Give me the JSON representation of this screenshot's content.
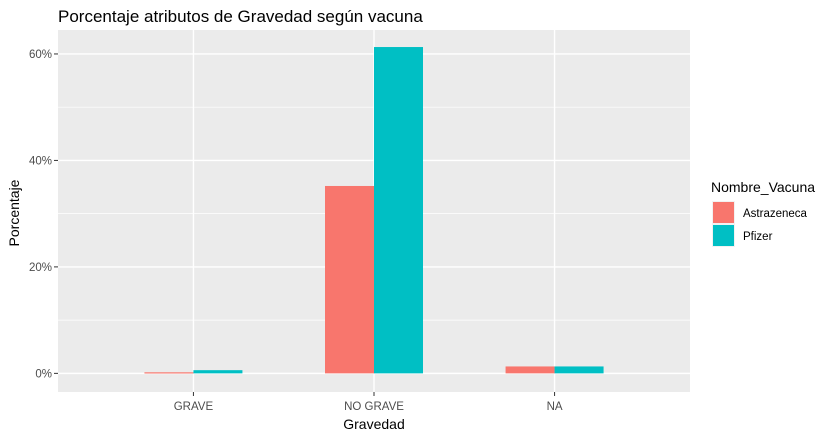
{
  "chart_data": {
    "type": "bar",
    "title": "Porcentaje atributos de Gravedad según vacuna",
    "xlabel": "Gravedad",
    "ylabel": "Porcentaje",
    "categories": [
      "GRAVE",
      "NO GRAVE",
      "NA"
    ],
    "series": [
      {
        "name": "Astrazeneca",
        "color": "#F8766D",
        "values": [
          0.2,
          35.2,
          1.3
        ]
      },
      {
        "name": "Pfizer",
        "color": "#00BFC4",
        "values": [
          0.6,
          61.3,
          1.3
        ]
      }
    ],
    "ylim": [
      -3.5,
      64.5
    ],
    "yticks": [
      0,
      20,
      40,
      60
    ],
    "ytick_labels": [
      "0%",
      "20%",
      "40%",
      "60%"
    ],
    "grid": true,
    "legend": {
      "title": "Nombre_Vacuna",
      "position": "right"
    },
    "background": "#EBEBEB"
  }
}
